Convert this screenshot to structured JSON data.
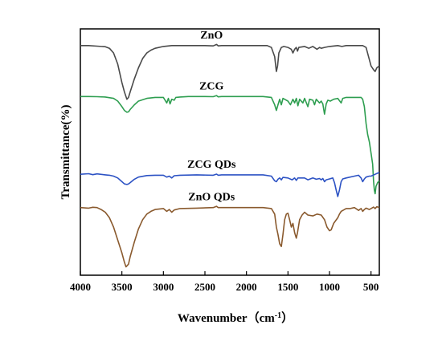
{
  "chart_data": {
    "type": "line",
    "xlabel": "Wavenumber（cm",
    "xlabel_sup": "-1",
    "xlabel_close": "）",
    "ylabel": "Transmittance(%)",
    "xlim": [
      4000,
      400
    ],
    "x_reversed": true,
    "xticks": [
      4000,
      3500,
      3000,
      2500,
      2000,
      1500,
      1000,
      500
    ],
    "y_axis_ticks_shown": false,
    "grid": false,
    "series": [
      {
        "name": "ZnO",
        "color": "#4a4a4a",
        "points": [
          [
            4000,
            86
          ],
          [
            3900,
            86
          ],
          [
            3800,
            85.7
          ],
          [
            3700,
            85.4
          ],
          [
            3650,
            84.5
          ],
          [
            3600,
            82
          ],
          [
            3550,
            76
          ],
          [
            3500,
            66
          ],
          [
            3470,
            61
          ],
          [
            3440,
            57
          ],
          [
            3420,
            58
          ],
          [
            3400,
            61
          ],
          [
            3350,
            68
          ],
          [
            3300,
            74
          ],
          [
            3250,
            79
          ],
          [
            3200,
            82
          ],
          [
            3150,
            83.5
          ],
          [
            3100,
            84.5
          ],
          [
            3000,
            85.5
          ],
          [
            2900,
            86
          ],
          [
            2800,
            86
          ],
          [
            2700,
            86
          ],
          [
            2600,
            86
          ],
          [
            2500,
            86
          ],
          [
            2400,
            85.8
          ],
          [
            2360,
            86.6
          ],
          [
            2340,
            85.8
          ],
          [
            2300,
            86
          ],
          [
            2200,
            86
          ],
          [
            2100,
            86
          ],
          [
            2000,
            86
          ],
          [
            1900,
            86
          ],
          [
            1800,
            86
          ],
          [
            1750,
            86
          ],
          [
            1700,
            85
          ],
          [
            1660,
            80
          ],
          [
            1640,
            72
          ],
          [
            1625,
            75
          ],
          [
            1610,
            82
          ],
          [
            1580,
            85
          ],
          [
            1550,
            85.5
          ],
          [
            1500,
            85
          ],
          [
            1460,
            84
          ],
          [
            1440,
            82
          ],
          [
            1420,
            84
          ],
          [
            1400,
            85
          ],
          [
            1385,
            83
          ],
          [
            1370,
            85
          ],
          [
            1300,
            85.5
          ],
          [
            1250,
            84.5
          ],
          [
            1200,
            85.5
          ],
          [
            1150,
            84
          ],
          [
            1120,
            85
          ],
          [
            1100,
            84.5
          ],
          [
            1060,
            85
          ],
          [
            1000,
            85.5
          ],
          [
            900,
            86
          ],
          [
            850,
            85.5
          ],
          [
            800,
            86
          ],
          [
            700,
            86
          ],
          [
            600,
            86
          ],
          [
            560,
            85
          ],
          [
            530,
            80
          ],
          [
            500,
            75
          ],
          [
            470,
            73
          ],
          [
            450,
            72
          ],
          [
            430,
            74
          ],
          [
            400,
            75
          ]
        ]
      },
      {
        "name": "ZCG",
        "color": "#2e9e50",
        "points": [
          [
            4000,
            58.5
          ],
          [
            3900,
            58.5
          ],
          [
            3800,
            58.4
          ],
          [
            3700,
            58.2
          ],
          [
            3600,
            57.5
          ],
          [
            3550,
            56
          ],
          [
            3500,
            53
          ],
          [
            3470,
            51
          ],
          [
            3440,
            50
          ],
          [
            3420,
            50.2
          ],
          [
            3400,
            51.5
          ],
          [
            3350,
            54
          ],
          [
            3300,
            56
          ],
          [
            3200,
            57.5
          ],
          [
            3100,
            58
          ],
          [
            3000,
            58
          ],
          [
            2960,
            55
          ],
          [
            2940,
            57.5
          ],
          [
            2920,
            54.5
          ],
          [
            2900,
            57
          ],
          [
            2870,
            56.5
          ],
          [
            2850,
            58
          ],
          [
            2800,
            58.2
          ],
          [
            2700,
            58.5
          ],
          [
            2500,
            58.5
          ],
          [
            2400,
            58.4
          ],
          [
            2360,
            59
          ],
          [
            2340,
            58.3
          ],
          [
            2300,
            58.5
          ],
          [
            2000,
            58.5
          ],
          [
            1800,
            58.5
          ],
          [
            1700,
            58
          ],
          [
            1660,
            54
          ],
          [
            1640,
            51
          ],
          [
            1620,
            54
          ],
          [
            1600,
            57
          ],
          [
            1580,
            54
          ],
          [
            1560,
            57.5
          ],
          [
            1500,
            56
          ],
          [
            1470,
            54
          ],
          [
            1440,
            57
          ],
          [
            1420,
            55
          ],
          [
            1400,
            57.5
          ],
          [
            1380,
            53.5
          ],
          [
            1360,
            57
          ],
          [
            1320,
            55
          ],
          [
            1300,
            57.5
          ],
          [
            1260,
            53
          ],
          [
            1240,
            57
          ],
          [
            1200,
            56.5
          ],
          [
            1180,
            54
          ],
          [
            1160,
            57
          ],
          [
            1120,
            55
          ],
          [
            1100,
            56
          ],
          [
            1080,
            54.5
          ],
          [
            1060,
            49
          ],
          [
            1040,
            54.5
          ],
          [
            1020,
            56.5
          ],
          [
            990,
            56
          ],
          [
            950,
            57
          ],
          [
            900,
            57.5
          ],
          [
            860,
            55
          ],
          [
            840,
            57.5
          ],
          [
            800,
            58
          ],
          [
            700,
            58
          ],
          [
            620,
            58
          ],
          [
            600,
            57
          ],
          [
            580,
            53
          ],
          [
            560,
            44
          ],
          [
            540,
            38
          ],
          [
            520,
            34
          ],
          [
            500,
            28
          ],
          [
            480,
            22
          ],
          [
            470,
            13
          ],
          [
            460,
            8
          ],
          [
            450,
            6
          ],
          [
            440,
            10
          ],
          [
            420,
            12
          ],
          [
            400,
            13
          ]
        ]
      },
      {
        "name": "ZCG QDs",
        "color": "#2c52c4",
        "points": [
          [
            4000,
            16.5
          ],
          [
            3900,
            16.8
          ],
          [
            3850,
            16.3
          ],
          [
            3800,
            16.7
          ],
          [
            3700,
            16.2
          ],
          [
            3650,
            16
          ],
          [
            3600,
            15.5
          ],
          [
            3550,
            14.5
          ],
          [
            3500,
            12.5
          ],
          [
            3470,
            11.3
          ],
          [
            3440,
            11
          ],
          [
            3420,
            11.3
          ],
          [
            3400,
            12
          ],
          [
            3350,
            13.8
          ],
          [
            3300,
            15
          ],
          [
            3200,
            15.8
          ],
          [
            3100,
            16
          ],
          [
            3000,
            16
          ],
          [
            2960,
            15
          ],
          [
            2930,
            15.5
          ],
          [
            2900,
            14.5
          ],
          [
            2870,
            15.7
          ],
          [
            2800,
            16
          ],
          [
            2600,
            16.2
          ],
          [
            2400,
            16
          ],
          [
            2360,
            16.6
          ],
          [
            2340,
            16
          ],
          [
            2300,
            16.2
          ],
          [
            2000,
            16.2
          ],
          [
            1800,
            16.2
          ],
          [
            1700,
            15.5
          ],
          [
            1660,
            13
          ],
          [
            1640,
            12.5
          ],
          [
            1620,
            13.8
          ],
          [
            1600,
            14.5
          ],
          [
            1580,
            13.5
          ],
          [
            1560,
            14.8
          ],
          [
            1500,
            14.5
          ],
          [
            1450,
            13.5
          ],
          [
            1420,
            14.5
          ],
          [
            1400,
            13.2
          ],
          [
            1380,
            14.5
          ],
          [
            1300,
            14.5
          ],
          [
            1260,
            13.5
          ],
          [
            1200,
            14.5
          ],
          [
            1160,
            13.8
          ],
          [
            1120,
            14.2
          ],
          [
            1100,
            13.5
          ],
          [
            1080,
            14.2
          ],
          [
            1060,
            12.5
          ],
          [
            1040,
            13.5
          ],
          [
            1000,
            14
          ],
          [
            960,
            14.5
          ],
          [
            940,
            12
          ],
          [
            920,
            8
          ],
          [
            900,
            4.5
          ],
          [
            880,
            8
          ],
          [
            860,
            12.5
          ],
          [
            840,
            14
          ],
          [
            800,
            14.5
          ],
          [
            700,
            15.5
          ],
          [
            650,
            16
          ],
          [
            620,
            14.5
          ],
          [
            600,
            12.5
          ],
          [
            580,
            14
          ],
          [
            560,
            15
          ],
          [
            520,
            15.5
          ],
          [
            500,
            15.5
          ],
          [
            450,
            16.5
          ],
          [
            400,
            17.5
          ]
        ]
      },
      {
        "name": "ZnO QDs",
        "color": "#8a5a2e",
        "points": [
          [
            4000,
            -1.5
          ],
          [
            3900,
            -1.8
          ],
          [
            3850,
            -1.3
          ],
          [
            3800,
            -1.5
          ],
          [
            3750,
            -2.5
          ],
          [
            3700,
            -4
          ],
          [
            3650,
            -7
          ],
          [
            3600,
            -12
          ],
          [
            3550,
            -19
          ],
          [
            3500,
            -26
          ],
          [
            3470,
            -31
          ],
          [
            3450,
            -33.5
          ],
          [
            3420,
            -32
          ],
          [
            3400,
            -28
          ],
          [
            3350,
            -20
          ],
          [
            3300,
            -13
          ],
          [
            3250,
            -8
          ],
          [
            3200,
            -5
          ],
          [
            3150,
            -3.5
          ],
          [
            3100,
            -2.5
          ],
          [
            3000,
            -2
          ],
          [
            2960,
            -3.5
          ],
          [
            2930,
            -2.5
          ],
          [
            2900,
            -4
          ],
          [
            2870,
            -2.8
          ],
          [
            2800,
            -2
          ],
          [
            2600,
            -1.8
          ],
          [
            2400,
            -1.5
          ],
          [
            2360,
            -0.8
          ],
          [
            2340,
            -1.5
          ],
          [
            2300,
            -1.5
          ],
          [
            2000,
            -1.5
          ],
          [
            1800,
            -1.5
          ],
          [
            1700,
            -2
          ],
          [
            1660,
            -5
          ],
          [
            1640,
            -12
          ],
          [
            1620,
            -16
          ],
          [
            1600,
            -21
          ],
          [
            1580,
            -22.5
          ],
          [
            1560,
            -16
          ],
          [
            1540,
            -8
          ],
          [
            1520,
            -5
          ],
          [
            1500,
            -4.5
          ],
          [
            1480,
            -8
          ],
          [
            1460,
            -12
          ],
          [
            1440,
            -10
          ],
          [
            1420,
            -15
          ],
          [
            1400,
            -18
          ],
          [
            1385,
            -15
          ],
          [
            1360,
            -8
          ],
          [
            1330,
            -5.5
          ],
          [
            1300,
            -4
          ],
          [
            1260,
            -5.5
          ],
          [
            1200,
            -6
          ],
          [
            1150,
            -5
          ],
          [
            1100,
            -5.5
          ],
          [
            1060,
            -8
          ],
          [
            1030,
            -12
          ],
          [
            1000,
            -14
          ],
          [
            980,
            -13.5
          ],
          [
            950,
            -10
          ],
          [
            900,
            -7
          ],
          [
            880,
            -5
          ],
          [
            860,
            -3.5
          ],
          [
            800,
            -2
          ],
          [
            750,
            -2
          ],
          [
            700,
            -1.5
          ],
          [
            650,
            -3
          ],
          [
            620,
            -2
          ],
          [
            600,
            -3.5
          ],
          [
            580,
            -2.5
          ],
          [
            560,
            -1.8
          ],
          [
            520,
            -2.5
          ],
          [
            500,
            -2
          ],
          [
            470,
            -1.2
          ],
          [
            450,
            -2
          ],
          [
            430,
            -1
          ],
          [
            400,
            -1.5
          ]
        ]
      }
    ]
  }
}
